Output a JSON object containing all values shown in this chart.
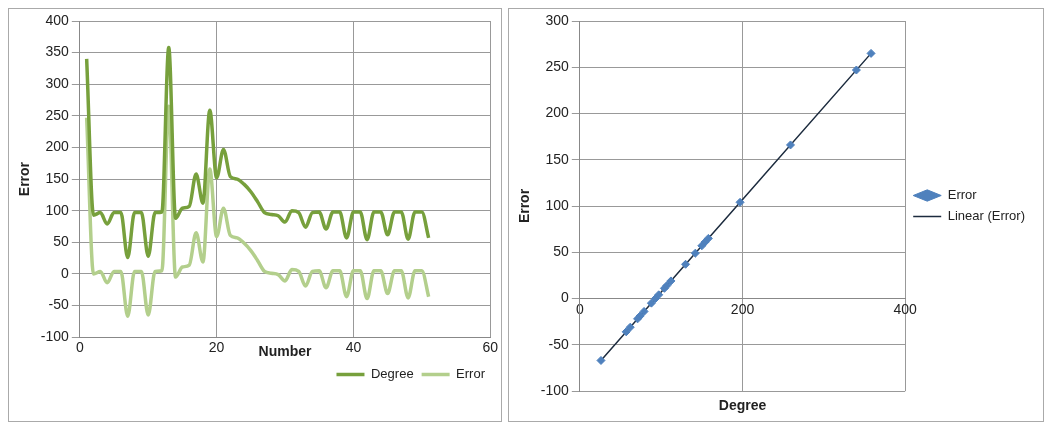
{
  "chart_data": [
    {
      "type": "line",
      "xlabel": "Number",
      "ylabel": "Error",
      "x": [
        1,
        2,
        3,
        4,
        5,
        6,
        7,
        8,
        9,
        10,
        11,
        12,
        13,
        14,
        15,
        16,
        17,
        18,
        19,
        20,
        21,
        22,
        23,
        24,
        25,
        26,
        27,
        28,
        29,
        30,
        31,
        32,
        33,
        34,
        35,
        36,
        37,
        38,
        39,
        40,
        41,
        42,
        43,
        44,
        45,
        46,
        47,
        48,
        49,
        50,
        51
      ],
      "series": [
        {
          "name": "Degree",
          "color": "#77a03c",
          "values": [
            340,
            93,
            97,
            79,
            97,
            97,
            26,
            97,
            97,
            28,
            97,
            98,
            358,
            88,
            104,
            107,
            158,
            112,
            259,
            152,
            197,
            154,
            150,
            142,
            130,
            114,
            97,
            94,
            92,
            82,
            100,
            97,
            74,
            97,
            98,
            71,
            98,
            98,
            57,
            98,
            98,
            54,
            98,
            98,
            62,
            98,
            98,
            55,
            98,
            98,
            57
          ]
        },
        {
          "name": "Error",
          "color": "#b3cf8c",
          "values": [
            247,
            0,
            4,
            -14,
            4,
            4,
            -67,
            4,
            4,
            -65,
            4,
            5,
            265,
            -5,
            11,
            14,
            65,
            19,
            166,
            59,
            104,
            61,
            57,
            49,
            37,
            21,
            4,
            1,
            -1,
            -11,
            7,
            4,
            -19,
            4,
            5,
            -22,
            5,
            5,
            -36,
            5,
            5,
            -39,
            5,
            5,
            -31,
            5,
            5,
            -38,
            5,
            5,
            -36
          ]
        }
      ],
      "xlim": [
        0,
        60
      ],
      "xticks": [
        0,
        20,
        40,
        60
      ],
      "ylim": [
        -100,
        400
      ],
      "yticks": [
        -100,
        -50,
        0,
        50,
        100,
        150,
        200,
        250,
        300,
        350,
        400
      ],
      "grid": true,
      "legend": "bottom right",
      "marker": "none"
    },
    {
      "type": "scatter",
      "xlabel": "Degree",
      "ylabel": "Error",
      "series": [
        {
          "name": "Error",
          "color": "#4f81bd",
          "marker": "diamond",
          "x": [
            340,
            93,
            97,
            79,
            26,
            358,
            88,
            104,
            107,
            158,
            112,
            259,
            197,
            154,
            150,
            142,
            130,
            74,
            71,
            57,
            62
          ],
          "values": [
            247,
            0,
            4,
            -14,
            -67,
            265,
            -5,
            11,
            14,
            65,
            19,
            166,
            104,
            61,
            57,
            49,
            37,
            -19,
            -22,
            -36,
            -31
          ]
        },
        {
          "name": "Linear (Error)",
          "type": "line",
          "color": "#1c2b3e",
          "marker": "none",
          "x": [
            26,
            358
          ],
          "values": [
            -67,
            265
          ]
        }
      ],
      "xlim": [
        0,
        400
      ],
      "xticks": [
        0,
        200,
        400
      ],
      "ylim": [
        -100,
        300
      ],
      "yticks": [
        -100,
        -50,
        0,
        50,
        100,
        150,
        200,
        250,
        300
      ],
      "grid": true,
      "legend": "right"
    }
  ]
}
